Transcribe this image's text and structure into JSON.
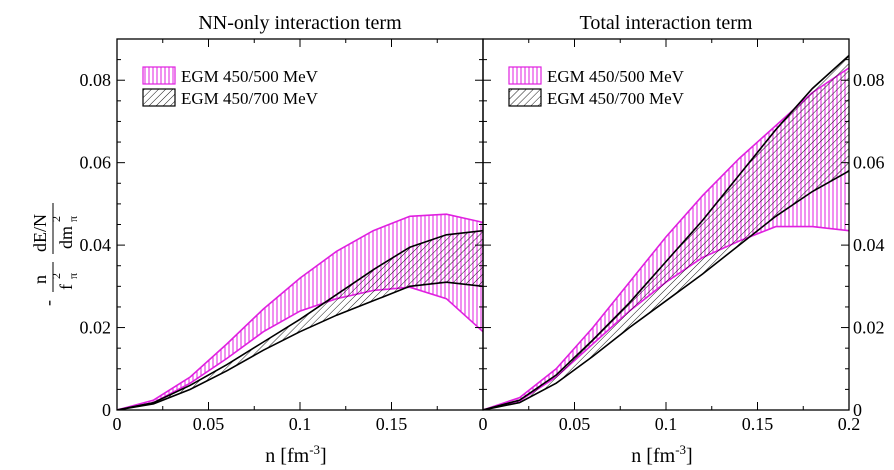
{
  "figure": {
    "ylabel": {
      "prefix": "-",
      "n": "n",
      "fpi": "f",
      "fpi_sub": "π",
      "fpi_sup": "2",
      "dEN": "dE/N",
      "dm": "dm",
      "dm_sub": "π",
      "dm_sup": "2"
    }
  },
  "chart_data": [
    {
      "type": "area",
      "title": "NN-only interaction term",
      "xlabel": "n [fm",
      "xlabel_sup": "-3",
      "xlabel_end": "]",
      "xlim": [
        0,
        0.2
      ],
      "ylim": [
        0,
        0.09
      ],
      "xticks": [
        0,
        0.05,
        0.1,
        0.15
      ],
      "xtick_labels": [
        "0",
        "0.05",
        "0.1",
        "0.15"
      ],
      "yticks": [
        0,
        0.02,
        0.04,
        0.06,
        0.08
      ],
      "ytick_labels": [
        "0",
        "0.02",
        "0.04",
        "0.06",
        "0.08"
      ],
      "ytick_side": "left",
      "legend": {
        "position": "top-left",
        "entries": [
          "EGM 450/500 MeV",
          "EGM 450/700 MeV"
        ]
      },
      "x": [
        0,
        0.02,
        0.04,
        0.06,
        0.08,
        0.1,
        0.12,
        0.14,
        0.16,
        0.18,
        0.2
      ],
      "series": [
        {
          "name": "EGM 450/500 MeV",
          "color": "#e020e0",
          "pattern": "vertical",
          "upper": [
            0,
            0.0024,
            0.008,
            0.016,
            0.0245,
            0.032,
            0.0385,
            0.0435,
            0.047,
            0.0475,
            0.0455
          ],
          "lower": [
            0,
            0.0018,
            0.0065,
            0.0125,
            0.019,
            0.024,
            0.027,
            0.029,
            0.0298,
            0.027,
            0.019
          ]
        },
        {
          "name": "EGM 450/700 MeV",
          "color": "#000000",
          "pattern": "diagonal",
          "upper": [
            0,
            0.0018,
            0.006,
            0.011,
            0.0165,
            0.022,
            0.028,
            0.034,
            0.0395,
            0.0425,
            0.0435
          ],
          "lower": [
            0,
            0.0015,
            0.005,
            0.0095,
            0.0145,
            0.019,
            0.023,
            0.0265,
            0.03,
            0.031,
            0.03
          ]
        }
      ]
    },
    {
      "type": "area",
      "title": "Total interaction term",
      "xlabel": "n [fm",
      "xlabel_sup": "-3",
      "xlabel_end": "]",
      "xlim": [
        0,
        0.2
      ],
      "ylim": [
        0,
        0.09
      ],
      "xticks": [
        0,
        0.05,
        0.1,
        0.15,
        0.2
      ],
      "xtick_labels": [
        "0",
        "0.05",
        "0.1",
        "0.15",
        "0.2"
      ],
      "yticks": [
        0,
        0.02,
        0.04,
        0.06,
        0.08
      ],
      "ytick_labels": [
        "0",
        "0.02",
        "0.04",
        "0.06",
        "0.08"
      ],
      "ytick_side": "right",
      "legend": {
        "position": "top-left",
        "entries": [
          "EGM 450/500 MeV",
          "EGM 450/700 MeV"
        ]
      },
      "x": [
        0,
        0.02,
        0.04,
        0.06,
        0.08,
        0.1,
        0.12,
        0.14,
        0.16,
        0.18,
        0.2
      ],
      "series": [
        {
          "name": "EGM 450/500 MeV",
          "color": "#e020e0",
          "pattern": "vertical",
          "upper": [
            0,
            0.003,
            0.01,
            0.02,
            0.031,
            0.042,
            0.052,
            0.061,
            0.069,
            0.077,
            0.083
          ],
          "lower": [
            0,
            0.0022,
            0.008,
            0.016,
            0.024,
            0.031,
            0.037,
            0.041,
            0.0445,
            0.0445,
            0.0435
          ]
        },
        {
          "name": "EGM 450/700 MeV",
          "color": "#000000",
          "pattern": "diagonal",
          "upper": [
            0,
            0.0024,
            0.0085,
            0.017,
            0.026,
            0.036,
            0.046,
            0.057,
            0.068,
            0.078,
            0.086
          ],
          "lower": [
            0,
            0.0018,
            0.0065,
            0.013,
            0.02,
            0.0265,
            0.033,
            0.04,
            0.047,
            0.053,
            0.058
          ]
        }
      ]
    }
  ]
}
